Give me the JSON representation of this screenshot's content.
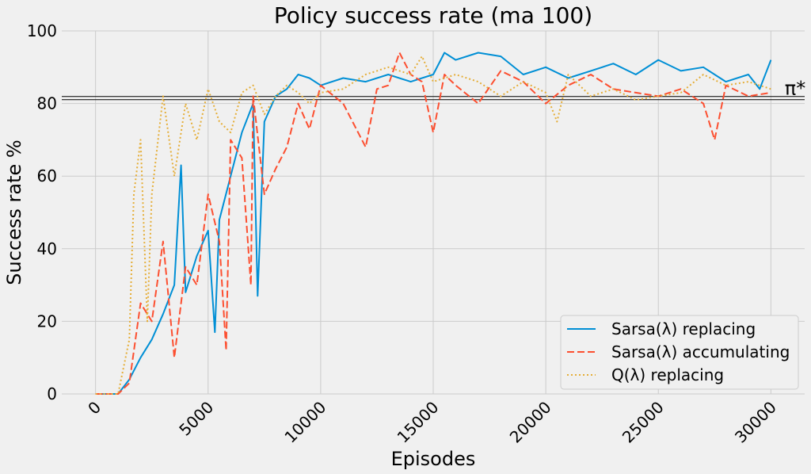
{
  "chart_data": {
    "type": "line",
    "title": "Policy success rate (ma 100)",
    "xlabel": "Episodes",
    "ylabel": "Success rate %",
    "xlim": [
      -1500,
      31500
    ],
    "ylim": [
      0,
      100
    ],
    "x_ticks": [
      0,
      5000,
      10000,
      15000,
      20000,
      25000,
      30000
    ],
    "y_ticks": [
      0,
      20,
      40,
      60,
      80,
      100
    ],
    "grid": true,
    "legend_position": "lower-right",
    "reference_line": {
      "label": "π*",
      "value": 81.5
    },
    "series": [
      {
        "name": "Sarsa(λ) replacing",
        "color": "#008fd5",
        "style": "solid",
        "points": [
          [
            0,
            0
          ],
          [
            1000,
            0
          ],
          [
            1500,
            4
          ],
          [
            2000,
            10
          ],
          [
            2500,
            15
          ],
          [
            3000,
            22
          ],
          [
            3500,
            30
          ],
          [
            3800,
            63
          ],
          [
            4000,
            28
          ],
          [
            4500,
            38
          ],
          [
            5000,
            45
          ],
          [
            5300,
            17
          ],
          [
            5500,
            48
          ],
          [
            6000,
            60
          ],
          [
            6500,
            72
          ],
          [
            7000,
            80
          ],
          [
            7200,
            27
          ],
          [
            7500,
            75
          ],
          [
            8000,
            82
          ],
          [
            8500,
            84
          ],
          [
            9000,
            88
          ],
          [
            9500,
            87
          ],
          [
            10000,
            85
          ],
          [
            11000,
            87
          ],
          [
            12000,
            86
          ],
          [
            13000,
            88
          ],
          [
            14000,
            86
          ],
          [
            15000,
            88
          ],
          [
            15500,
            94
          ],
          [
            16000,
            92
          ],
          [
            17000,
            94
          ],
          [
            18000,
            93
          ],
          [
            19000,
            88
          ],
          [
            20000,
            90
          ],
          [
            21000,
            87
          ],
          [
            22000,
            89
          ],
          [
            23000,
            91
          ],
          [
            24000,
            88
          ],
          [
            25000,
            92
          ],
          [
            26000,
            89
          ],
          [
            27000,
            90
          ],
          [
            28000,
            86
          ],
          [
            29000,
            88
          ],
          [
            29500,
            84
          ],
          [
            30000,
            92
          ]
        ]
      },
      {
        "name": "Sarsa(λ) accumulating",
        "color": "#fc4f30",
        "style": "dashed",
        "points": [
          [
            0,
            0
          ],
          [
            1000,
            0
          ],
          [
            1500,
            3
          ],
          [
            2000,
            25
          ],
          [
            2500,
            20
          ],
          [
            3000,
            42
          ],
          [
            3500,
            10
          ],
          [
            4000,
            35
          ],
          [
            4500,
            30
          ],
          [
            5000,
            55
          ],
          [
            5500,
            42
          ],
          [
            5800,
            12
          ],
          [
            6000,
            70
          ],
          [
            6500,
            65
          ],
          [
            6900,
            30
          ],
          [
            7000,
            82
          ],
          [
            7500,
            55
          ],
          [
            8000,
            62
          ],
          [
            8500,
            68
          ],
          [
            9000,
            80
          ],
          [
            9500,
            73
          ],
          [
            10000,
            85
          ],
          [
            11000,
            80
          ],
          [
            12000,
            68
          ],
          [
            12500,
            84
          ],
          [
            13000,
            85
          ],
          [
            13500,
            94
          ],
          [
            14000,
            88
          ],
          [
            14500,
            86
          ],
          [
            15000,
            72
          ],
          [
            15500,
            88
          ],
          [
            16000,
            85
          ],
          [
            17000,
            80
          ],
          [
            18000,
            89
          ],
          [
            19000,
            86
          ],
          [
            20000,
            80
          ],
          [
            21000,
            85
          ],
          [
            22000,
            88
          ],
          [
            23000,
            84
          ],
          [
            24000,
            83
          ],
          [
            25000,
            82
          ],
          [
            26000,
            84
          ],
          [
            27000,
            80
          ],
          [
            27500,
            70
          ],
          [
            28000,
            85
          ],
          [
            29000,
            82
          ],
          [
            30000,
            83
          ]
        ]
      },
      {
        "name": "Q(λ) replacing",
        "color": "#e5ae38",
        "style": "dotted",
        "points": [
          [
            0,
            0
          ],
          [
            1000,
            0
          ],
          [
            1500,
            15
          ],
          [
            1700,
            55
          ],
          [
            2000,
            70
          ],
          [
            2300,
            20
          ],
          [
            2500,
            55
          ],
          [
            3000,
            82
          ],
          [
            3500,
            60
          ],
          [
            4000,
            80
          ],
          [
            4500,
            70
          ],
          [
            5000,
            84
          ],
          [
            5500,
            75
          ],
          [
            6000,
            72
          ],
          [
            6500,
            83
          ],
          [
            7000,
            85
          ],
          [
            7500,
            77
          ],
          [
            8000,
            82
          ],
          [
            8500,
            85
          ],
          [
            9000,
            83
          ],
          [
            9500,
            80
          ],
          [
            10000,
            83
          ],
          [
            11000,
            84
          ],
          [
            12000,
            88
          ],
          [
            13000,
            90
          ],
          [
            14000,
            88
          ],
          [
            14500,
            93
          ],
          [
            15000,
            86
          ],
          [
            16000,
            88
          ],
          [
            17000,
            86
          ],
          [
            18000,
            82
          ],
          [
            19000,
            86
          ],
          [
            20000,
            83
          ],
          [
            20500,
            75
          ],
          [
            21000,
            88
          ],
          [
            22000,
            82
          ],
          [
            23000,
            84
          ],
          [
            24000,
            81
          ],
          [
            25000,
            82
          ],
          [
            26000,
            83
          ],
          [
            27000,
            88
          ],
          [
            28000,
            85
          ],
          [
            29000,
            86
          ],
          [
            30000,
            84
          ]
        ]
      }
    ]
  }
}
